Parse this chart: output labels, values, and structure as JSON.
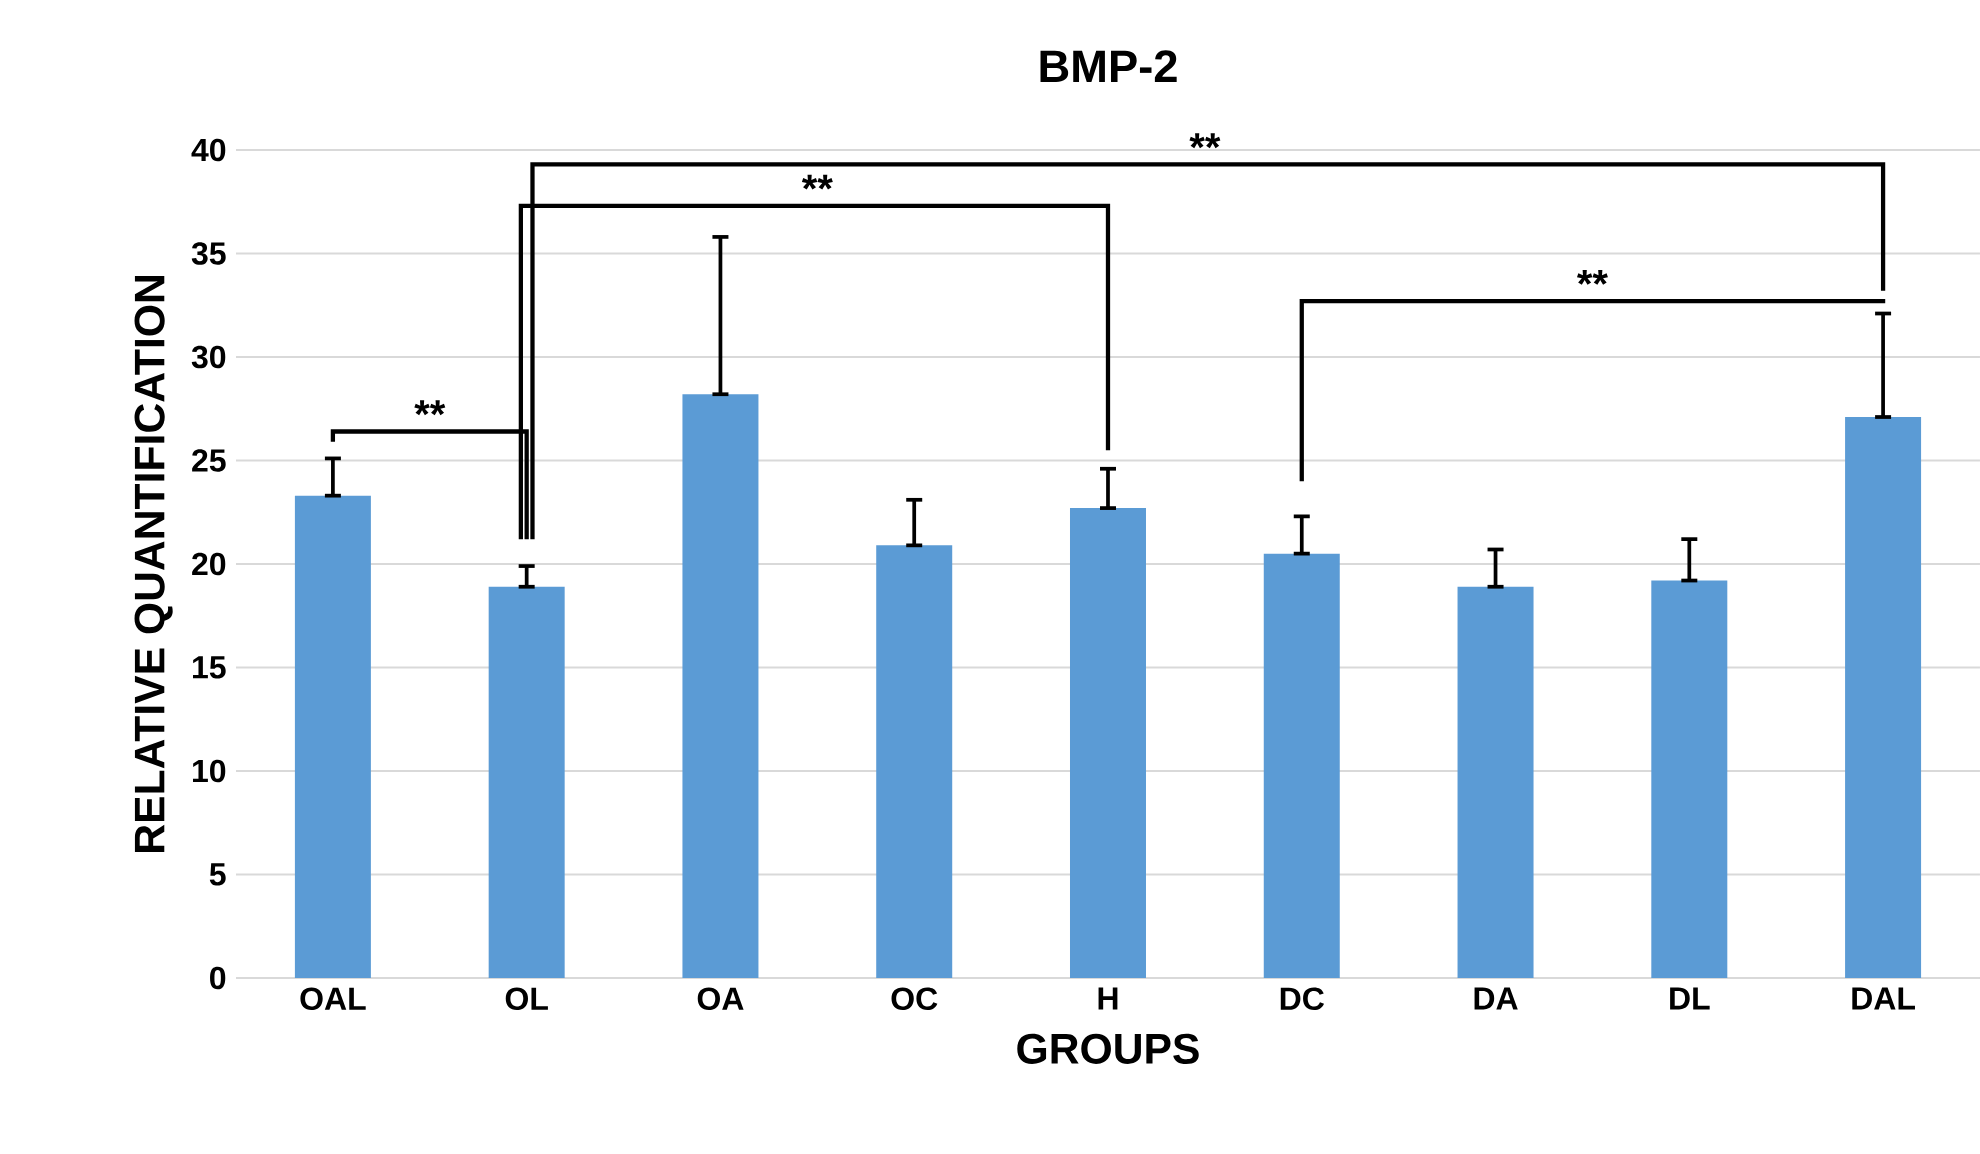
{
  "chart_data": {
    "type": "bar",
    "title": "BMP-2",
    "xlabel": "GROUPS",
    "ylabel": "RELATIVE QUANTIFICATION",
    "categories": [
      "OAL",
      "OL",
      "OA",
      "OC",
      "H",
      "DC",
      "DA",
      "DL",
      "DAL"
    ],
    "values": [
      23.3,
      18.9,
      28.2,
      20.9,
      22.7,
      20.5,
      18.9,
      19.2,
      27.1
    ],
    "errors": [
      [
        23.3,
        25.1
      ],
      [
        18.9,
        19.9
      ],
      [
        28.2,
        35.8
      ],
      [
        20.9,
        23.1
      ],
      [
        22.7,
        24.6
      ],
      [
        20.5,
        22.3
      ],
      [
        18.9,
        20.7
      ],
      [
        19.2,
        21.2
      ],
      [
        27.1,
        32.1
      ]
    ],
    "color": "#5b9bd5",
    "ylim": [
      0,
      40
    ],
    "yticks": [
      0,
      5,
      10,
      15,
      20,
      25,
      30,
      35,
      40
    ],
    "grid": "y",
    "annotations": [
      "**",
      "**",
      "**",
      "**"
    ]
  }
}
